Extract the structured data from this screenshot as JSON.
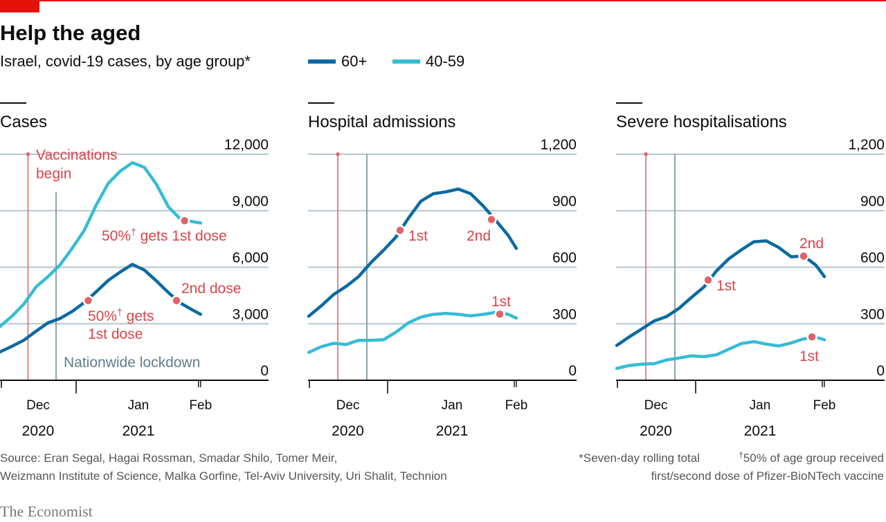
{
  "header": {
    "title": "Help the aged",
    "subtitle": "Israel, covid-19 cases, by age group*",
    "legend": [
      {
        "label": "60+",
        "color": "#0b6aa2"
      },
      {
        "label": "40-59",
        "color": "#36bcd4"
      }
    ]
  },
  "colors": {
    "brand_red": "#e3120b",
    "annotation_red": "#db444b",
    "marker_red": "#e06369",
    "lockdown": "#758d99",
    "grid": "#b7c6cf"
  },
  "chart_data": [
    {
      "type": "line",
      "title": "Cases",
      "ylim": [
        0,
        12000
      ],
      "yticks": [
        0,
        3000,
        6000,
        9000,
        12000
      ],
      "ytick_labels": [
        "0",
        "3,000",
        "6,000",
        "9,000",
        "12,000"
      ],
      "xtick_labels": [
        "Dec",
        "Jan",
        "Feb"
      ],
      "year_labels": [
        "2020",
        "2021"
      ],
      "grid": true,
      "x": [
        "2020-12-13",
        "2020-12-16",
        "2020-12-19",
        "2020-12-22",
        "2020-12-25",
        "2020-12-28",
        "2020-12-31",
        "2021-01-03",
        "2021-01-06",
        "2021-01-09",
        "2021-01-12",
        "2021-01-15",
        "2021-01-18",
        "2021-01-21",
        "2021-01-24",
        "2021-01-27",
        "2021-01-30",
        "2021-02-01"
      ],
      "series": [
        {
          "name": "60+",
          "values": [
            1500,
            1800,
            2130,
            2600,
            3050,
            3280,
            3650,
            4120,
            4700,
            5300,
            5750,
            6150,
            5850,
            5270,
            4650,
            4100,
            3730,
            3500
          ]
        },
        {
          "name": "40-59",
          "values": [
            2850,
            3400,
            4050,
            4950,
            5500,
            6130,
            7000,
            7950,
            9300,
            10450,
            11100,
            11550,
            11300,
            10400,
            9200,
            8550,
            8420,
            8350
          ]
        }
      ],
      "markers": [
        {
          "series": "60+",
          "date": "2021-01-04",
          "value": 4230
        },
        {
          "series": "60+",
          "date": "2021-01-26",
          "value": 4230
        },
        {
          "series": "40-59",
          "date": "2021-01-28",
          "value": 8470
        }
      ],
      "events": [
        {
          "date": "2020-12-20",
          "label": "Vaccinations begin",
          "label_lines": [
            "Vaccinations",
            "begin"
          ]
        },
        {
          "date": "2020-12-27",
          "label": "Nationwide lockdown"
        }
      ],
      "annotations": {
        "light_first": {
          "pre": "50%",
          "sup": "†",
          "post": " gets 1st dose"
        },
        "dark_first": {
          "pre": "50%",
          "sup": "†",
          "post": " gets",
          "line2": "1st dose"
        },
        "dark_second": "2nd dose"
      }
    },
    {
      "type": "line",
      "title": "Hospital admissions",
      "ylim": [
        0,
        1200
      ],
      "yticks": [
        0,
        300,
        600,
        900,
        1200
      ],
      "ytick_labels": [
        "0",
        "300",
        "600",
        "900",
        "1,200"
      ],
      "xtick_labels": [
        "Dec",
        "Jan",
        "Feb"
      ],
      "year_labels": [
        "2020",
        "2021"
      ],
      "grid": true,
      "x": [
        "2020-12-13",
        "2020-12-16",
        "2020-12-19",
        "2020-12-22",
        "2020-12-25",
        "2020-12-28",
        "2020-12-31",
        "2021-01-03",
        "2021-01-06",
        "2021-01-09",
        "2021-01-12",
        "2021-01-15",
        "2021-01-18",
        "2021-01-21",
        "2021-01-24",
        "2021-01-27",
        "2021-01-30",
        "2021-02-01"
      ],
      "series": [
        {
          "name": "60+",
          "values": [
            340,
            395,
            455,
            498,
            550,
            625,
            690,
            760,
            860,
            950,
            990,
            1000,
            1015,
            990,
            925,
            850,
            770,
            700
          ]
        },
        {
          "name": "40-59",
          "values": [
            148,
            178,
            196,
            190,
            212,
            212,
            215,
            255,
            305,
            335,
            350,
            355,
            350,
            342,
            350,
            360,
            350,
            330
          ]
        }
      ],
      "markers": [
        {
          "series": "60+",
          "date": "2021-01-04",
          "value": 796
        },
        {
          "series": "60+",
          "date": "2021-01-26",
          "value": 853
        },
        {
          "series": "40-59",
          "date": "2021-01-28",
          "value": 351
        }
      ],
      "events": [
        {
          "date": "2020-12-20"
        },
        {
          "date": "2020-12-27"
        }
      ],
      "annotations": {
        "dark_first": "1st",
        "dark_second": "2nd",
        "light_first": "1st"
      }
    },
    {
      "type": "line",
      "title": "Severe hospitalisations",
      "ylim": [
        0,
        1200
      ],
      "yticks": [
        0,
        300,
        600,
        900,
        1200
      ],
      "ytick_labels": [
        "0",
        "300",
        "600",
        "900",
        "1,200"
      ],
      "xtick_labels": [
        "Dec",
        "Jan",
        "Feb"
      ],
      "year_labels": [
        "2020",
        "2021"
      ],
      "grid": true,
      "x": [
        "2020-12-13",
        "2020-12-16",
        "2020-12-19",
        "2020-12-22",
        "2020-12-25",
        "2020-12-28",
        "2020-12-31",
        "2021-01-03",
        "2021-01-06",
        "2021-01-09",
        "2021-01-12",
        "2021-01-15",
        "2021-01-18",
        "2021-01-21",
        "2021-01-24",
        "2021-01-27",
        "2021-01-30",
        "2021-02-01"
      ],
      "series": [
        {
          "name": "60+",
          "values": [
            185,
            230,
            272,
            315,
            338,
            382,
            440,
            495,
            580,
            645,
            692,
            735,
            740,
            705,
            655,
            660,
            610,
            550
          ]
        },
        {
          "name": "40-59",
          "values": [
            63,
            78,
            85,
            88,
            108,
            118,
            130,
            125,
            135,
            165,
            195,
            205,
            192,
            182,
            198,
            220,
            228,
            215
          ]
        }
      ],
      "markers": [
        {
          "series": "60+",
          "date": "2021-01-04",
          "value": 532
        },
        {
          "series": "60+",
          "date": "2021-01-27",
          "value": 659
        },
        {
          "series": "40-59",
          "date": "2021-01-29",
          "value": 230
        }
      ],
      "events": [
        {
          "date": "2020-12-20"
        },
        {
          "date": "2020-12-27"
        }
      ],
      "annotations": {
        "dark_first": "1st",
        "dark_second": "2nd",
        "light_first": "1st"
      }
    }
  ],
  "footer": {
    "source_line1": "Source: Eran Segal, Hagai Rossman, Smadar Shilo, Tomer Meir,",
    "source_line2": "Weizmann Institute of Science, Malka Gorfine, Tel-Aviv University, Uri Shalit, Technion",
    "note1": "*Seven-day rolling total",
    "note2_sup": "†",
    "note2": "50% of age group received",
    "note3": "first/second dose of Pfizer-BioNTech vaccine",
    "brand": "The Economist"
  }
}
